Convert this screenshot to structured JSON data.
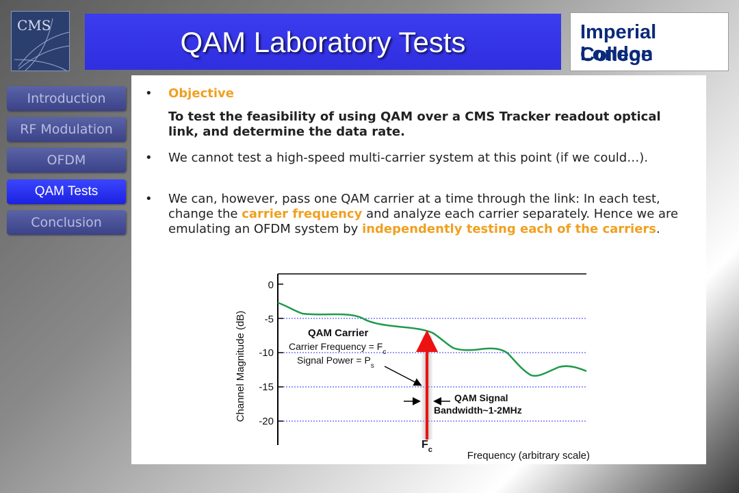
{
  "header": {
    "title": "QAM Laboratory Tests",
    "logo_left_text": "CMS",
    "logo_right_line1": "Imperial College",
    "logo_right_line2": "London"
  },
  "nav": {
    "items": [
      {
        "label": "Introduction",
        "active": false
      },
      {
        "label": "RF Modulation",
        "active": false
      },
      {
        "label": "OFDM",
        "active": false
      },
      {
        "label": "QAM Tests",
        "active": true
      },
      {
        "label": "Conclusion",
        "active": false
      }
    ]
  },
  "content": {
    "objective_label": "Objective",
    "objective_text": "To test the feasibility of using QAM over a CMS Tracker readout optical link, and determine the data rate.",
    "bullet2": "We cannot test a high-speed multi-carrier system at this point (if we could…).",
    "bullet3_a": "We can, however, pass one QAM carrier at a time through the link: In each test, change the ",
    "bullet3_b": "carrier frequency",
    "bullet3_c": " and analyze each carrier separately. Hence we are emulating an OFDM system by ",
    "bullet3_d": "independently testing each of the carriers",
    "bullet3_e": "."
  },
  "figure": {
    "ylabel": "Channel Magnitude (dB)",
    "xlabel": "Frequency (arbitrary scale)",
    "yticks": [
      "0",
      "-5",
      "-10",
      "-15",
      "-20"
    ],
    "annot_carrier_title": "QAM Carrier",
    "annot_cf": "Carrier Frequency = F",
    "annot_cf_sub": "c",
    "annot_sp": "Signal Power = P",
    "annot_sp_sub": "s",
    "annot_sig1": "QAM Signal",
    "annot_sig2": "Bandwidth~1-2MHz",
    "fc_label": "F",
    "fc_sub": "c",
    "colors": {
      "curve": "#1e9a4a",
      "arrow": "#ee1111",
      "grid": "#3030ff"
    }
  }
}
